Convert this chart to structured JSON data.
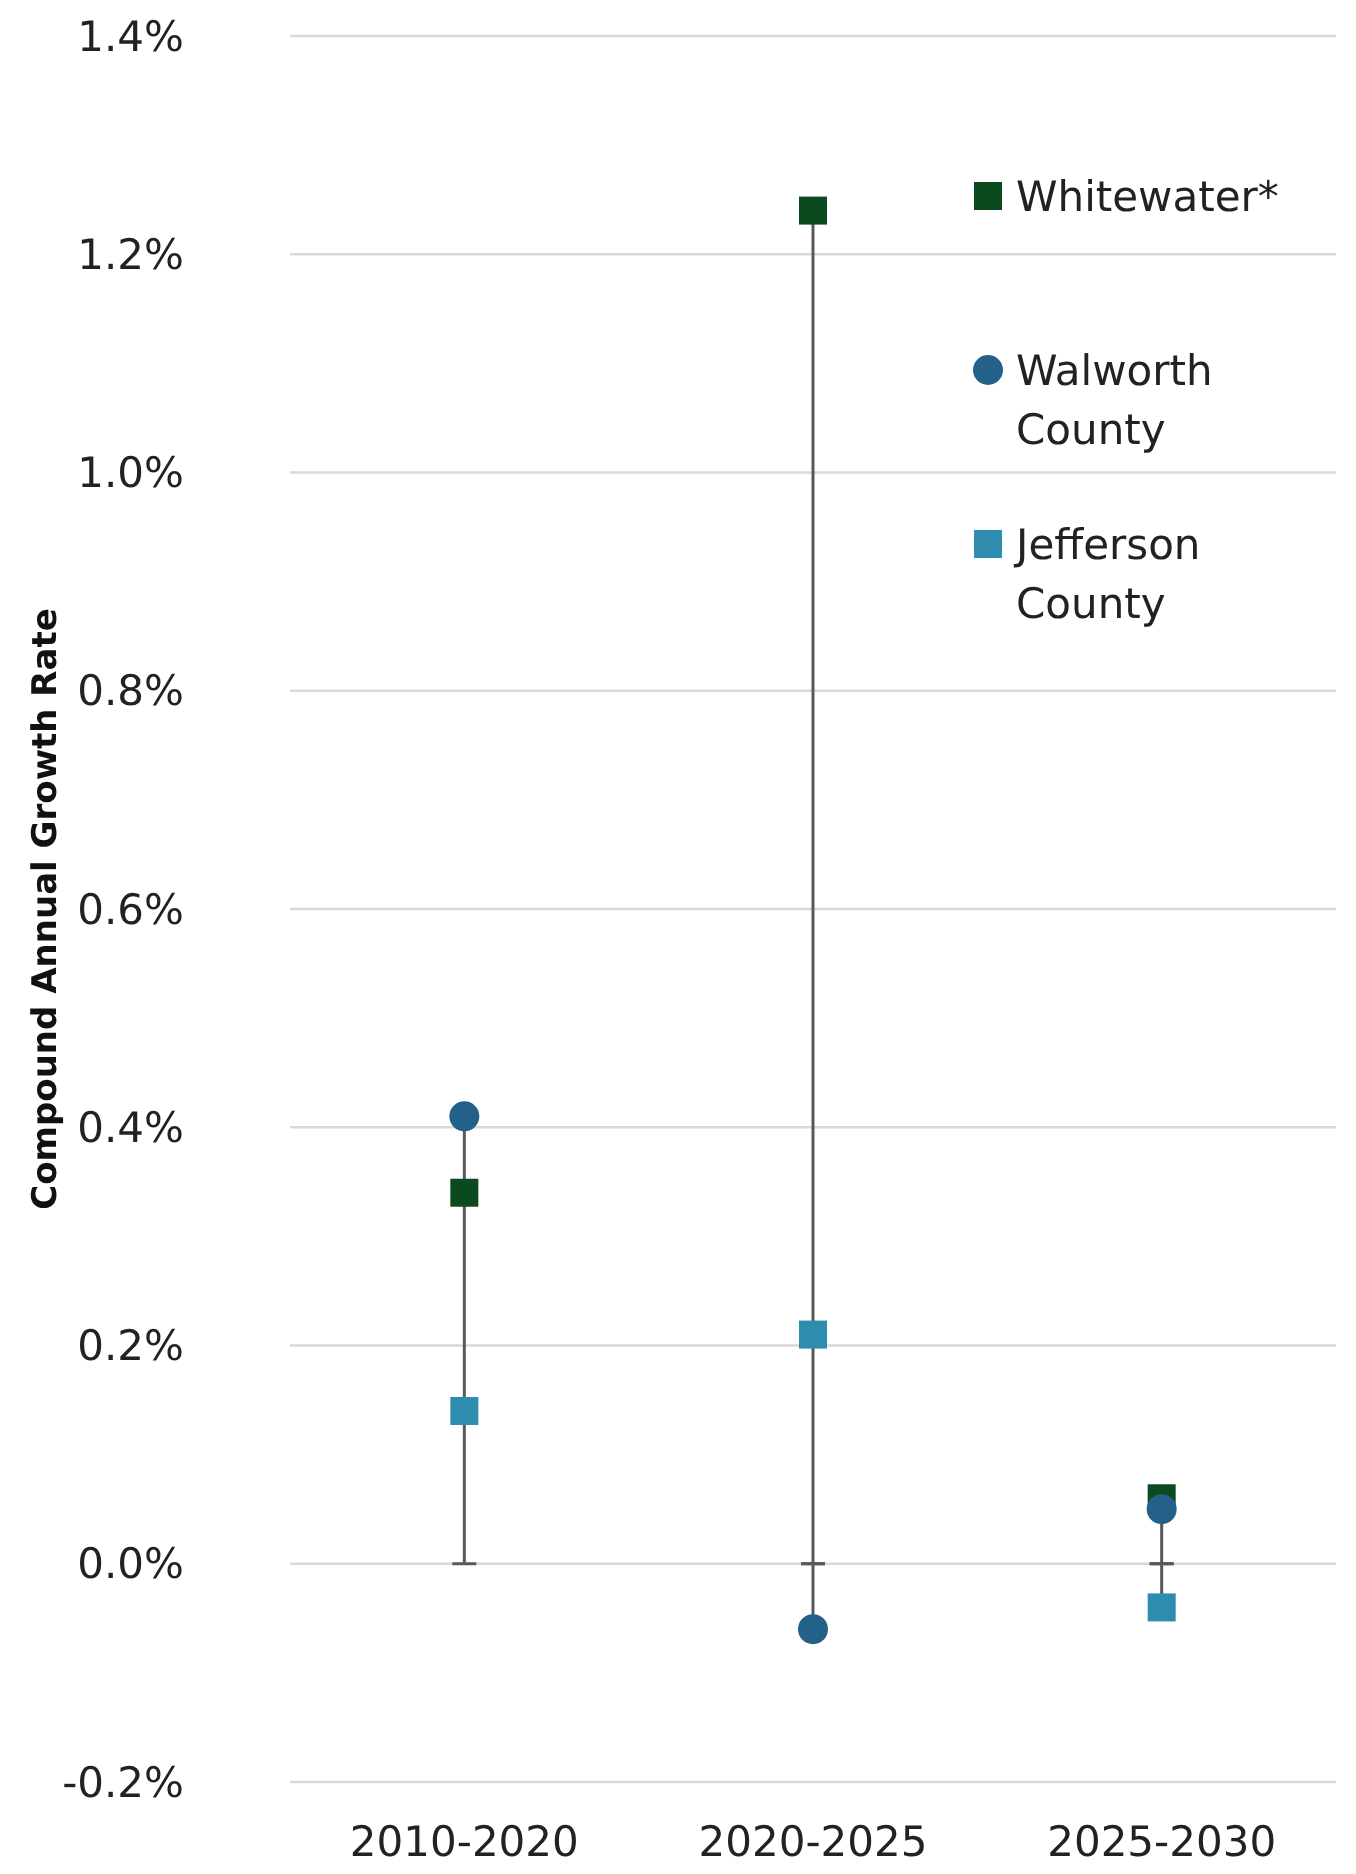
{
  "chart_data": {
    "type": "scatter",
    "ylabel": "Compound Annual Growth Rate",
    "categories": [
      "2010-2020",
      "2020-2025",
      "2025-2030"
    ],
    "series": [
      {
        "name": "Whitewater*",
        "color": "#0b4a1f",
        "marker": "square",
        "values": [
          0.34,
          1.24,
          0.06
        ],
        "errors": [
          null,
          [
            0,
            1.24
          ],
          [
            0,
            0.06
          ]
        ]
      },
      {
        "name": "Walworth County",
        "color": "#24618a",
        "marker": "circle",
        "values": [
          0.41,
          -0.06,
          0.05
        ],
        "errors": [
          [
            0,
            0.41
          ],
          [
            -0.06,
            0
          ],
          null
        ]
      },
      {
        "name": "Jefferson County",
        "color": "#2e8cae",
        "marker": "square",
        "values": [
          0.14,
          0.21,
          -0.04
        ],
        "errors": [
          null,
          null,
          [
            -0.04,
            0
          ]
        ]
      }
    ],
    "ylim": [
      -0.2,
      1.4
    ],
    "yticks": [
      {
        "value": -0.2,
        "label": "-0.2%"
      },
      {
        "value": 0,
        "label": "0.0%"
      },
      {
        "value": 0.2,
        "label": "0.2%"
      },
      {
        "value": 0.4,
        "label": "0.4%"
      },
      {
        "value": 0.6,
        "label": "0.6%"
      },
      {
        "value": 0.8,
        "label": "0.8%"
      },
      {
        "value": 1.0,
        "label": "1.0%"
      },
      {
        "value": 1.2,
        "label": "1.2%"
      },
      {
        "value": 1.4,
        "label": "1.4%"
      }
    ],
    "grid": "y",
    "legend": "top right"
  }
}
